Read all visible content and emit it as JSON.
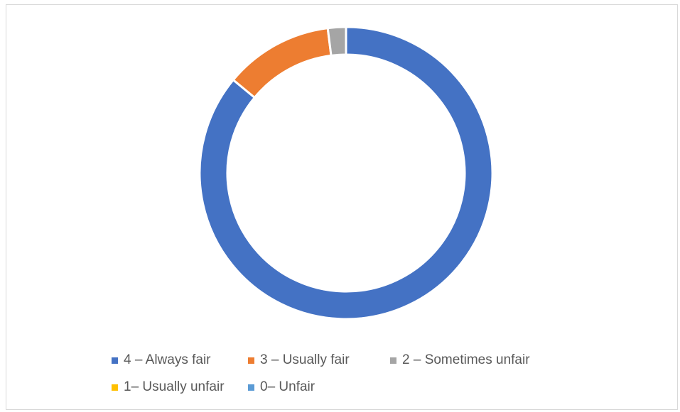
{
  "chart_data": {
    "type": "pie",
    "variant": "doughnut",
    "title": "",
    "categories": [
      "4 – Always fair",
      "3 – Usually fair",
      "2 – Sometimes unfair",
      "1– Usually unfair",
      "0– Unfair"
    ],
    "values": [
      86,
      12,
      2,
      0,
      0
    ],
    "colors": [
      "#4472c4",
      "#ed7d31",
      "#a5a5a5",
      "#ffc000",
      "#5b9bd5"
    ],
    "legend_position": "bottom"
  }
}
